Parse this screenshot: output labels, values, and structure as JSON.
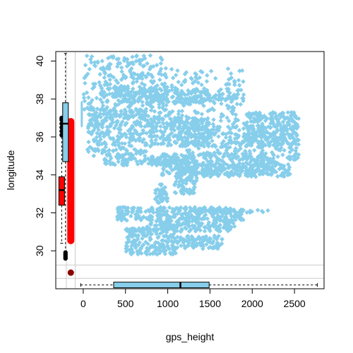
{
  "chart_data": {
    "type": "scatter",
    "xlabel": "gps_height",
    "ylabel": "longitude",
    "x_ticks": [
      0,
      500,
      1000,
      1500,
      2000,
      2500
    ],
    "y_ticks": [
      30,
      32,
      34,
      36,
      38,
      40
    ],
    "xlim": [
      -325,
      2850
    ],
    "ylim": [
      28.0,
      40.5
    ],
    "grid": false,
    "colors": {
      "scatter": "#87CEEB",
      "missing_box": "#FF0000",
      "missing_point": "#8B0000",
      "box_main": "#87CEEB"
    },
    "scatter_clusters": [
      {
        "x": [
          0,
          1000
        ],
        "y": [
          37.0,
          40.3
        ]
      },
      {
        "x": [
          200,
          1900
        ],
        "y": [
          36.5,
          39.6
        ]
      },
      {
        "x": [
          400,
          1500
        ],
        "y": [
          37.8,
          38.5
        ]
      },
      {
        "x": [
          1500,
          1900
        ],
        "y": [
          37.9,
          38.3
        ]
      },
      {
        "x": [
          50,
          750
        ],
        "y": [
          35.0,
          37.5
        ]
      },
      {
        "x": [
          750,
          1500
        ],
        "y": [
          35.5,
          37.0
        ]
      },
      {
        "x": [
          1200,
          2550
        ],
        "y": [
          34.8,
          36.6
        ]
      },
      {
        "x": [
          1900,
          2550
        ],
        "y": [
          35.5,
          37.3
        ]
      },
      {
        "x": [
          1400,
          2450
        ],
        "y": [
          33.9,
          34.6
        ]
      },
      {
        "x": [
          250,
          1200
        ],
        "y": [
          34.5,
          35.0
        ]
      },
      {
        "x": [
          900,
          2300
        ],
        "y": [
          34.0,
          35.2
        ]
      },
      {
        "x": [
          1080,
          1350
        ],
        "y": [
          33.0,
          34.8
        ]
      },
      {
        "x": [
          850,
          1000
        ],
        "y": [
          32.5,
          33.5
        ]
      },
      {
        "x": [
          400,
          1900
        ],
        "y": [
          31.6,
          32.3
        ]
      },
      {
        "x": [
          750,
          1800
        ],
        "y": [
          31.0,
          31.6
        ]
      },
      {
        "x": [
          500,
          1100
        ],
        "y": [
          29.8,
          31.2
        ]
      },
      {
        "x": [
          1100,
          1650
        ],
        "y": [
          30.1,
          30.8
        ]
      },
      {
        "x": [
          1300,
          2200
        ],
        "y": [
          32.0,
          32.2
        ]
      }
    ],
    "scatter_strip": {
      "x": [
        -30,
        -5
      ],
      "y": [
        36.5,
        37.9
      ]
    },
    "missing_x_point": {
      "y": 28.85
    },
    "missing_y_box": {
      "min": 30.35,
      "q1": 30.35,
      "median": 35.0,
      "q3": 37.0,
      "max": 37.0
    },
    "y_boxplot_missing": {
      "q1": 32.4,
      "median": 33.2,
      "q3": 33.9,
      "whisker_low": 30.4,
      "whisker_high": 36.0,
      "outliers": [
        36.1,
        36.3,
        36.5,
        36.7,
        36.9,
        37.0
      ]
    },
    "y_boxplot_present": {
      "q1": 34.7,
      "median": 36.7,
      "q3": 37.8,
      "whisker_low": 30.0,
      "whisker_high": 40.4,
      "outliers": [
        29.6,
        29.7,
        29.8,
        29.9
      ]
    },
    "x_boxplot": {
      "whisker_low": -30,
      "q1": 360,
      "median": 1150,
      "q3": 1490,
      "whisker_high": 2770
    }
  }
}
